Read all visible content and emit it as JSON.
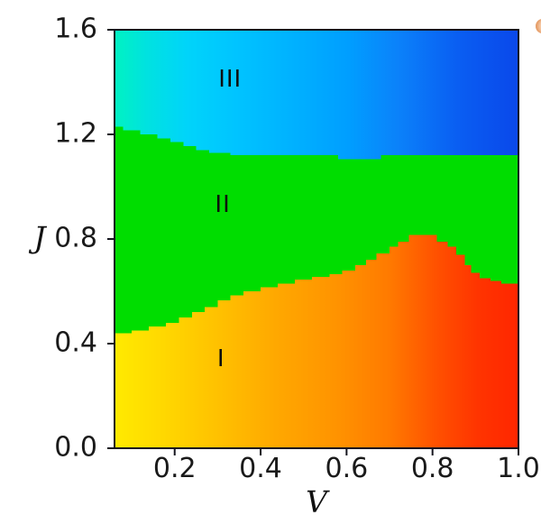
{
  "chart_data": {
    "type": "heatmap",
    "subtype": "phase-diagram",
    "xlabel": "V",
    "ylabel": "J",
    "xlim": [
      0.06,
      1.0
    ],
    "ylim": [
      0.0,
      1.6
    ],
    "xticks": [
      0.2,
      0.4,
      0.6,
      0.8,
      1.0
    ],
    "yticks": [
      0.0,
      0.4,
      0.8,
      1.2,
      1.6
    ],
    "tick_decimals": 1,
    "grid": false,
    "legend": "none",
    "axis_color": "#15151f",
    "tick_label_color": "#1a1a1a",
    "regions": [
      {
        "label": "I",
        "label_pos": {
          "v": 0.308,
          "j": 0.34
        },
        "fill": "gradient",
        "gradient_stops": [
          [
            0.0,
            "#ffea00"
          ],
          [
            0.12,
            "#ffd800"
          ],
          [
            0.25,
            "#ffc200"
          ],
          [
            0.4,
            "#ffa800"
          ],
          [
            0.55,
            "#ff9300"
          ],
          [
            0.68,
            "#ff7a00"
          ],
          [
            0.8,
            "#ff5000"
          ],
          [
            0.9,
            "#ff3400"
          ],
          [
            1.0,
            "#ff2600"
          ]
        ],
        "extent": "from J=0 up to boundary I-II"
      },
      {
        "label": "II",
        "label_pos": {
          "v": 0.312,
          "j": 0.93
        },
        "fill": "solid",
        "color": "#00dd00",
        "extent": "between boundary I-II and boundary II-III"
      },
      {
        "label": "III",
        "label_pos": {
          "v": 0.329,
          "j": 1.41
        },
        "fill": "gradient",
        "gradient_stops": [
          [
            0.0,
            "#00f2c2"
          ],
          [
            0.08,
            "#00e2e0"
          ],
          [
            0.18,
            "#00d4fa"
          ],
          [
            0.3,
            "#00c4ff"
          ],
          [
            0.45,
            "#00b0ff"
          ],
          [
            0.58,
            "#009eff"
          ],
          [
            0.7,
            "#0b82fa"
          ],
          [
            0.85,
            "#0a5ef2"
          ],
          [
            1.0,
            "#0a48ea"
          ]
        ],
        "extent": "from boundary II-III up to J=1.6"
      }
    ],
    "boundaries": [
      {
        "name": "I-II",
        "style": "step",
        "points": [
          [
            0.06,
            0.44
          ],
          [
            0.1,
            0.45
          ],
          [
            0.14,
            0.465
          ],
          [
            0.18,
            0.48
          ],
          [
            0.21,
            0.5
          ],
          [
            0.24,
            0.52
          ],
          [
            0.27,
            0.54
          ],
          [
            0.3,
            0.565
          ],
          [
            0.33,
            0.585
          ],
          [
            0.36,
            0.6
          ],
          [
            0.4,
            0.615
          ],
          [
            0.44,
            0.63
          ],
          [
            0.48,
            0.645
          ],
          [
            0.52,
            0.655
          ],
          [
            0.56,
            0.665
          ],
          [
            0.59,
            0.68
          ],
          [
            0.62,
            0.7
          ],
          [
            0.645,
            0.72
          ],
          [
            0.67,
            0.745
          ],
          [
            0.7,
            0.77
          ],
          [
            0.72,
            0.79
          ],
          [
            0.745,
            0.815
          ],
          [
            0.81,
            0.79
          ],
          [
            0.835,
            0.77
          ],
          [
            0.855,
            0.74
          ],
          [
            0.875,
            0.7
          ],
          [
            0.89,
            0.67
          ],
          [
            0.91,
            0.65
          ],
          [
            0.935,
            0.64
          ],
          [
            0.96,
            0.63
          ],
          [
            1.0,
            0.63
          ]
        ]
      },
      {
        "name": "II-III",
        "style": "step",
        "points": [
          [
            0.06,
            1.23
          ],
          [
            0.08,
            1.215
          ],
          [
            0.12,
            1.2
          ],
          [
            0.16,
            1.185
          ],
          [
            0.19,
            1.17
          ],
          [
            0.22,
            1.155
          ],
          [
            0.25,
            1.14
          ],
          [
            0.28,
            1.13
          ],
          [
            0.33,
            1.12
          ],
          [
            0.58,
            1.105
          ],
          [
            0.68,
            1.12
          ],
          [
            1.0,
            1.12
          ]
        ]
      }
    ]
  },
  "decor": {
    "clipped_marker_color": "#f6c39a"
  }
}
